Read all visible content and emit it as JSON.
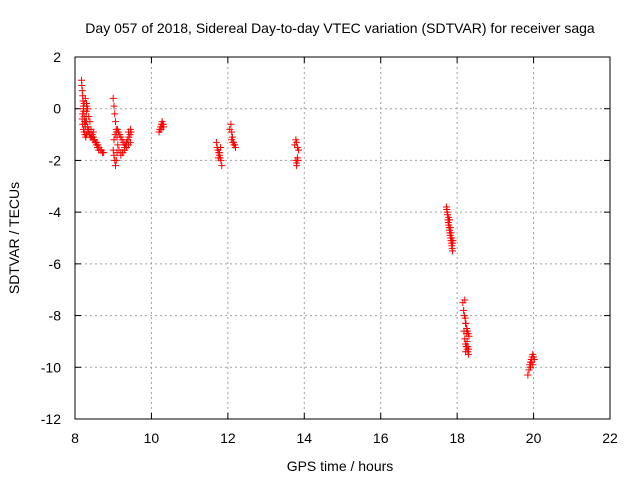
{
  "chart_data": {
    "type": "scatter",
    "title": "Day 057 of 2018, Sidereal Day-to-day VTEC variation (SDTVAR) for receiver saga",
    "xlabel": "GPS time / hours",
    "ylabel": "SDTVAR / TECUs",
    "xlim": [
      8,
      22
    ],
    "ylim": [
      -12,
      2
    ],
    "xticks": [
      8,
      10,
      12,
      14,
      16,
      18,
      20,
      22
    ],
    "yticks": [
      -12,
      -10,
      -8,
      -6,
      -4,
      -2,
      0,
      2
    ],
    "grid": true,
    "marker": "+",
    "series": [
      {
        "name": "SDTVAR",
        "color": "#ff0000",
        "x": [
          8.17,
          8.18,
          8.19,
          8.2,
          8.21,
          8.22,
          8.23,
          8.24,
          8.25,
          8.26,
          8.27,
          8.28,
          8.29,
          8.3,
          8.31,
          8.19,
          8.2,
          8.22,
          8.24,
          8.26,
          8.28,
          8.3,
          8.32,
          8.2,
          8.22,
          8.24,
          8.27,
          8.3,
          8.33,
          8.36,
          8.39,
          8.42,
          8.45,
          8.48,
          8.51,
          8.54,
          8.57,
          8.6,
          8.63,
          8.66,
          8.69,
          8.72,
          8.75,
          8.35,
          8.38,
          8.41,
          8.44,
          8.47,
          8.5,
          8.53,
          8.56,
          8.59,
          8.62,
          8.3,
          8.33,
          8.36,
          8.39,
          8.42,
          8.45,
          8.48,
          9.0,
          9.02,
          9.04,
          9.06,
          9.08,
          9.1,
          9.12,
          9.0,
          9.02,
          9.04,
          9.06,
          9.08,
          9.1,
          9.02,
          9.05,
          9.08,
          9.11,
          9.14,
          9.17,
          9.2,
          9.23,
          9.26,
          9.29,
          9.32,
          9.35,
          9.38,
          9.41,
          9.44,
          9.47,
          9.15,
          9.2,
          9.25,
          9.3,
          9.35,
          9.4,
          9.45,
          9.2,
          9.25,
          9.3,
          9.35,
          9.4,
          9.45,
          10.2,
          10.22,
          10.24,
          10.26,
          10.28,
          10.3,
          10.32,
          10.25,
          10.28,
          10.31,
          11.7,
          11.72,
          11.74,
          11.76,
          11.78,
          11.8,
          11.82,
          11.84,
          11.75,
          11.78,
          11.81,
          12.05,
          12.08,
          12.1,
          12.12,
          12.15,
          12.18,
          12.2,
          12.1,
          12.13,
          12.16,
          13.75,
          13.78,
          13.8,
          13.82,
          13.85,
          13.78,
          13.8,
          13.83,
          13.8,
          13.82,
          17.72,
          17.73,
          17.74,
          17.75,
          17.76,
          17.77,
          17.78,
          17.79,
          17.8,
          17.81,
          17.82,
          17.83,
          17.84,
          17.85,
          17.86,
          17.87,
          17.88,
          17.89,
          17.78,
          17.8,
          17.82,
          17.84,
          17.86,
          17.88,
          18.15,
          18.17,
          18.19,
          18.21,
          18.23,
          18.25,
          18.27,
          18.29,
          18.31,
          18.18,
          18.2,
          18.22,
          18.24,
          18.26,
          18.28,
          18.3,
          18.2,
          18.22,
          18.24,
          18.26,
          18.28,
          18.3,
          18.22,
          18.24,
          19.85,
          19.88,
          19.9,
          19.92,
          19.94,
          19.96,
          19.98,
          20.0,
          20.02,
          19.92,
          19.95,
          19.98
        ],
        "y": [
          1.1,
          0.9,
          0.7,
          0.5,
          0.3,
          0.1,
          -0.1,
          -0.3,
          -0.5,
          -0.6,
          -0.7,
          -0.5,
          -0.3,
          -0.1,
          0.1,
          -0.4,
          -0.6,
          -0.8,
          -0.9,
          -1.0,
          -1.1,
          -1.0,
          -0.9,
          -0.2,
          0.0,
          0.2,
          0.4,
          0.2,
          0.0,
          -0.3,
          -0.5,
          -0.8,
          -1.0,
          -1.1,
          -1.2,
          -1.3,
          -1.3,
          -1.4,
          -1.5,
          -1.6,
          -1.6,
          -1.7,
          -1.7,
          -0.9,
          -1.0,
          -1.1,
          -1.1,
          -1.2,
          -1.2,
          -1.3,
          -1.4,
          -1.5,
          -1.6,
          -0.5,
          -0.7,
          -0.8,
          -1.0,
          -1.1,
          -1.0,
          -0.9,
          0.4,
          0.1,
          -0.2,
          -0.5,
          -0.8,
          -1.1,
          -1.4,
          -1.6,
          -1.8,
          -2.0,
          -2.2,
          -2.0,
          -1.7,
          -1.2,
          -1.0,
          -0.9,
          -0.8,
          -0.9,
          -1.0,
          -1.1,
          -1.2,
          -1.3,
          -1.4,
          -1.4,
          -1.3,
          -1.2,
          -1.1,
          -1.0,
          -0.9,
          -1.6,
          -1.7,
          -1.7,
          -1.6,
          -1.5,
          -1.4,
          -1.3,
          -1.8,
          -1.7,
          -1.5,
          -1.3,
          -0.9,
          -0.8,
          -0.9,
          -0.8,
          -0.7,
          -0.6,
          -0.5,
          -0.6,
          -0.7,
          -0.8,
          -0.7,
          -0.6,
          -1.3,
          -1.5,
          -1.6,
          -1.7,
          -1.8,
          -1.9,
          -2.0,
          -2.2,
          -1.9,
          -1.7,
          -1.5,
          -0.8,
          -0.6,
          -0.9,
          -1.1,
          -1.3,
          -1.4,
          -1.5,
          -1.2,
          -1.3,
          -1.4,
          -1.4,
          -1.2,
          -1.3,
          -1.5,
          -1.6,
          -2.0,
          -2.1,
          -2.0,
          -2.2,
          -1.9,
          -3.8,
          -3.9,
          -4.0,
          -4.1,
          -4.3,
          -4.4,
          -4.5,
          -4.6,
          -4.7,
          -4.8,
          -4.9,
          -5.0,
          -5.1,
          -5.2,
          -5.3,
          -5.4,
          -5.5,
          -5.1,
          -4.2,
          -4.3,
          -4.6,
          -4.8,
          -5.0,
          -5.2,
          -7.5,
          -7.8,
          -8.0,
          -8.1,
          -8.3,
          -8.5,
          -8.6,
          -8.7,
          -8.8,
          -8.6,
          -8.9,
          -9.1,
          -9.2,
          -9.3,
          -9.4,
          -9.5,
          -7.4,
          -8.3,
          -8.7,
          -9.0,
          -9.2,
          -9.3,
          -9.4,
          -9.2,
          -10.3,
          -10.1,
          -9.9,
          -9.8,
          -9.7,
          -9.6,
          -9.5,
          -9.6,
          -9.7,
          -10.0,
          -9.8,
          -9.9
        ]
      }
    ]
  }
}
